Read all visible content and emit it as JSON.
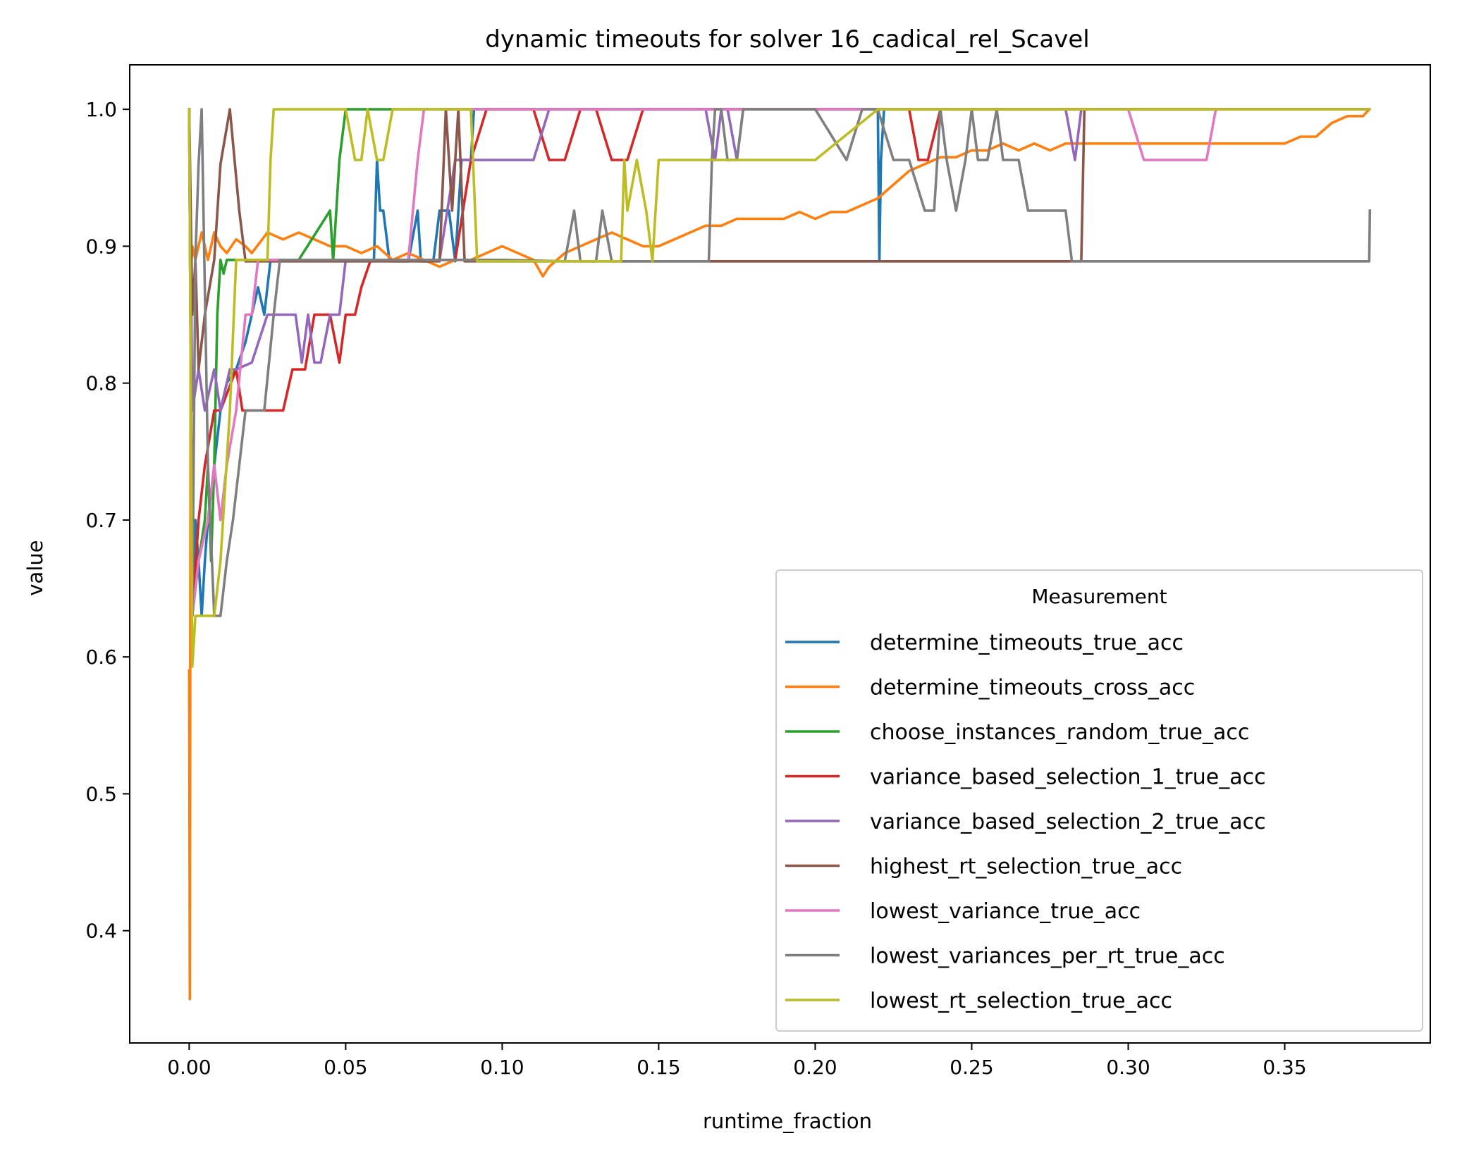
{
  "chart_data": {
    "type": "line",
    "title": "dynamic timeouts for solver 16_cadical_rel_Scavel",
    "xlabel": "runtime_fraction",
    "ylabel": "value",
    "xlim": [
      -0.019,
      0.3965
    ],
    "ylim": [
      0.318,
      1.0325
    ],
    "xticks": [
      0.0,
      0.05,
      0.1,
      0.15,
      0.2,
      0.25,
      0.3,
      0.35
    ],
    "xtick_labels": [
      "0.00",
      "0.05",
      "0.10",
      "0.15",
      "0.20",
      "0.25",
      "0.30",
      "0.35"
    ],
    "yticks": [
      0.4,
      0.5,
      0.6,
      0.7,
      0.8,
      0.9,
      1.0
    ],
    "ytick_labels": [
      "0.4",
      "0.5",
      "0.6",
      "0.7",
      "0.8",
      "0.9",
      "1.0"
    ],
    "grid": false,
    "legend": {
      "title": "Measurement",
      "placement": "lower-right"
    },
    "series": [
      {
        "name": "determine_timeouts_true_acc",
        "color": "#1f77b4",
        "x": [
          0,
          0.001,
          0.002,
          0.003,
          0.004,
          0.005,
          0.006,
          0.008,
          0.01,
          0.012,
          0.015,
          0.018,
          0.02,
          0.022,
          0.024,
          0.026,
          0.03,
          0.045,
          0.055,
          0.059,
          0.06,
          0.061,
          0.062,
          0.064,
          0.066,
          0.07,
          0.073,
          0.074,
          0.076,
          0.078,
          0.08,
          0.081,
          0.083,
          0.085,
          0.087,
          0.09,
          0.091,
          0.092,
          0.1,
          0.12,
          0.15,
          0.2,
          0.22,
          0.2205,
          0.221,
          0.222,
          0.224,
          0.226,
          0.3,
          0.377
        ],
        "values": [
          1.0,
          0.63,
          0.7,
          0.67,
          0.63,
          0.67,
          0.7,
          0.74,
          0.78,
          0.8,
          0.81,
          0.83,
          0.85,
          0.87,
          0.85,
          0.89,
          0.89,
          0.89,
          0.89,
          0.889,
          0.963,
          0.926,
          0.926,
          0.889,
          0.889,
          0.889,
          0.926,
          0.889,
          0.889,
          0.889,
          0.926,
          0.926,
          0.926,
          0.889,
          0.963,
          0.963,
          1.0,
          1.0,
          1.0,
          1.0,
          1.0,
          1.0,
          1.0,
          0.889,
          0.963,
          1.0,
          1.0,
          1.0,
          1.0,
          1.0
        ]
      },
      {
        "name": "determine_timeouts_cross_acc",
        "color": "#ff7f0e",
        "x": [
          0,
          0.0002,
          0.0005,
          0.001,
          0.002,
          0.004,
          0.006,
          0.008,
          0.01,
          0.012,
          0.015,
          0.018,
          0.02,
          0.025,
          0.03,
          0.035,
          0.04,
          0.045,
          0.05,
          0.055,
          0.06,
          0.065,
          0.07,
          0.075,
          0.08,
          0.085,
          0.09,
          0.095,
          0.1,
          0.105,
          0.11,
          0.113,
          0.115,
          0.12,
          0.125,
          0.13,
          0.135,
          0.14,
          0.145,
          0.15,
          0.155,
          0.16,
          0.165,
          0.17,
          0.175,
          0.18,
          0.185,
          0.19,
          0.195,
          0.2,
          0.205,
          0.21,
          0.215,
          0.22,
          0.225,
          0.23,
          0.235,
          0.24,
          0.245,
          0.25,
          0.255,
          0.26,
          0.265,
          0.27,
          0.275,
          0.28,
          0.285,
          0.29,
          0.295,
          0.3,
          0.305,
          0.31,
          0.315,
          0.32,
          0.325,
          0.33,
          0.34,
          0.35,
          0.355,
          0.36,
          0.365,
          0.37,
          0.375,
          0.377
        ],
        "values": [
          0.59,
          0.35,
          0.88,
          0.9,
          0.89,
          0.91,
          0.89,
          0.91,
          0.9,
          0.895,
          0.905,
          0.9,
          0.895,
          0.91,
          0.905,
          0.91,
          0.905,
          0.9,
          0.9,
          0.895,
          0.9,
          0.89,
          0.895,
          0.89,
          0.885,
          0.89,
          0.89,
          0.895,
          0.9,
          0.895,
          0.89,
          0.878,
          0.885,
          0.895,
          0.9,
          0.905,
          0.91,
          0.905,
          0.9,
          0.9,
          0.905,
          0.91,
          0.915,
          0.915,
          0.92,
          0.92,
          0.92,
          0.92,
          0.925,
          0.92,
          0.925,
          0.925,
          0.93,
          0.935,
          0.945,
          0.955,
          0.96,
          0.965,
          0.965,
          0.97,
          0.97,
          0.975,
          0.97,
          0.975,
          0.97,
          0.975,
          0.975,
          0.975,
          0.975,
          0.975,
          0.975,
          0.975,
          0.975,
          0.975,
          0.975,
          0.975,
          0.975,
          0.975,
          0.98,
          0.98,
          0.99,
          0.995,
          0.995,
          1.0
        ]
      },
      {
        "name": "choose_instances_random_true_acc",
        "color": "#2ca02c",
        "x": [
          0,
          0.001,
          0.003,
          0.005,
          0.006,
          0.007,
          0.008,
          0.009,
          0.01,
          0.011,
          0.012,
          0.014,
          0.017,
          0.02,
          0.025,
          0.035,
          0.045,
          0.046,
          0.047,
          0.048,
          0.05,
          0.052,
          0.055,
          0.06,
          0.065,
          0.07,
          0.08,
          0.1,
          0.15,
          0.2,
          0.3,
          0.377
        ],
        "values": [
          1.0,
          0.63,
          0.67,
          0.7,
          0.74,
          0.67,
          0.74,
          0.85,
          0.89,
          0.88,
          0.89,
          0.89,
          0.89,
          0.89,
          0.89,
          0.89,
          0.926,
          0.889,
          0.926,
          0.963,
          1.0,
          1.0,
          1.0,
          1.0,
          1.0,
          1.0,
          1.0,
          1.0,
          1.0,
          1.0,
          1.0,
          1.0
        ]
      },
      {
        "name": "variance_based_selection_1_true_acc",
        "color": "#d62728",
        "x": [
          0,
          0.001,
          0.003,
          0.005,
          0.008,
          0.01,
          0.015,
          0.017,
          0.02,
          0.025,
          0.03,
          0.033,
          0.037,
          0.04,
          0.045,
          0.048,
          0.05,
          0.053,
          0.055,
          0.058,
          0.06,
          0.07,
          0.08,
          0.085,
          0.09,
          0.095,
          0.1,
          0.11,
          0.115,
          0.12,
          0.125,
          0.13,
          0.135,
          0.14,
          0.145,
          0.15,
          0.16,
          0.17,
          0.18,
          0.19,
          0.2,
          0.21,
          0.22,
          0.23,
          0.233,
          0.236,
          0.24,
          0.25,
          0.28,
          0.3,
          0.377
        ],
        "values": [
          1.0,
          0.63,
          0.7,
          0.74,
          0.78,
          0.78,
          0.81,
          0.78,
          0.78,
          0.78,
          0.78,
          0.81,
          0.81,
          0.85,
          0.85,
          0.815,
          0.85,
          0.85,
          0.87,
          0.89,
          0.89,
          0.89,
          0.89,
          0.89,
          0.963,
          1.0,
          1.0,
          1.0,
          0.963,
          0.963,
          1.0,
          1.0,
          0.963,
          0.963,
          1.0,
          1.0,
          1.0,
          1.0,
          1.0,
          1.0,
          1.0,
          1.0,
          1.0,
          1.0,
          0.963,
          0.963,
          1.0,
          1.0,
          1.0,
          1.0,
          1.0
        ]
      },
      {
        "name": "variance_based_selection_2_true_acc",
        "color": "#9467bd",
        "x": [
          0,
          0.001,
          0.003,
          0.005,
          0.008,
          0.01,
          0.013,
          0.015,
          0.02,
          0.025,
          0.03,
          0.034,
          0.036,
          0.038,
          0.04,
          0.042,
          0.045,
          0.048,
          0.05,
          0.055,
          0.06,
          0.07,
          0.08,
          0.085,
          0.09,
          0.1,
          0.11,
          0.115,
          0.12,
          0.13,
          0.15,
          0.165,
          0.168,
          0.17,
          0.172,
          0.175,
          0.177,
          0.18,
          0.2,
          0.22,
          0.25,
          0.28,
          0.283,
          0.285,
          0.29,
          0.3,
          0.377
        ],
        "values": [
          1.0,
          0.78,
          0.81,
          0.78,
          0.81,
          0.78,
          0.81,
          0.81,
          0.815,
          0.85,
          0.85,
          0.85,
          0.815,
          0.85,
          0.815,
          0.815,
          0.85,
          0.85,
          0.89,
          0.89,
          0.89,
          0.89,
          0.89,
          0.963,
          0.963,
          0.963,
          0.963,
          1.0,
          1.0,
          1.0,
          1.0,
          1.0,
          0.963,
          1.0,
          1.0,
          0.963,
          1.0,
          1.0,
          1.0,
          1.0,
          1.0,
          1.0,
          0.963,
          1.0,
          1.0,
          1.0,
          1.0
        ]
      },
      {
        "name": "highest_rt_selection_true_acc",
        "color": "#8c564b",
        "x": [
          0,
          0.001,
          0.002,
          0.003,
          0.005,
          0.008,
          0.01,
          0.013,
          0.016,
          0.018,
          0.025,
          0.04,
          0.06,
          0.08,
          0.082,
          0.084,
          0.086,
          0.088,
          0.1,
          0.15,
          0.17,
          0.2,
          0.25,
          0.285,
          0.286,
          0.377
        ],
        "values": [
          1.0,
          0.85,
          0.89,
          0.81,
          0.85,
          0.89,
          0.96,
          1.0,
          0.926,
          0.889,
          0.889,
          0.889,
          0.889,
          0.889,
          1.0,
          0.926,
          1.0,
          0.889,
          0.889,
          0.889,
          0.889,
          0.889,
          0.889,
          0.889,
          1.0,
          1.0
        ]
      },
      {
        "name": "lowest_variance_true_acc",
        "color": "#e377c2",
        "x": [
          0,
          0.001,
          0.003,
          0.006,
          0.008,
          0.01,
          0.012,
          0.015,
          0.018,
          0.02,
          0.022,
          0.025,
          0.03,
          0.05,
          0.07,
          0.073,
          0.075,
          0.076,
          0.078,
          0.08,
          0.09,
          0.15,
          0.2,
          0.25,
          0.3,
          0.305,
          0.31,
          0.325,
          0.328,
          0.33,
          0.377
        ],
        "values": [
          1.0,
          0.63,
          0.67,
          0.7,
          0.74,
          0.7,
          0.74,
          0.78,
          0.85,
          0.85,
          0.89,
          0.89,
          0.89,
          0.89,
          0.89,
          0.963,
          1.0,
          1.0,
          1.0,
          1.0,
          1.0,
          1.0,
          1.0,
          1.0,
          1.0,
          0.963,
          0.963,
          0.963,
          1.0,
          1.0,
          1.0
        ]
      },
      {
        "name": "lowest_variances_per_rt_true_acc",
        "color": "#7f7f7f",
        "x": [
          0,
          0.001,
          0.002,
          0.003,
          0.004,
          0.006,
          0.008,
          0.01,
          0.012,
          0.014,
          0.016,
          0.018,
          0.02,
          0.024,
          0.027,
          0.029,
          0.03,
          0.05,
          0.1,
          0.12,
          0.123,
          0.125,
          0.13,
          0.132,
          0.135,
          0.15,
          0.166,
          0.167,
          0.168,
          0.17,
          0.172,
          0.175,
          0.177,
          0.18,
          0.182,
          0.185,
          0.2,
          0.21,
          0.215,
          0.22,
          0.225,
          0.23,
          0.235,
          0.238,
          0.24,
          0.242,
          0.245,
          0.248,
          0.25,
          0.252,
          0.255,
          0.258,
          0.26,
          0.262,
          0.265,
          0.268,
          0.275,
          0.278,
          0.28,
          0.282,
          0.285,
          0.286,
          0.3,
          0.377,
          0.3772
        ],
        "values": [
          1.0,
          0.63,
          0.89,
          0.96,
          1.0,
          0.74,
          0.63,
          0.63,
          0.67,
          0.7,
          0.74,
          0.78,
          0.78,
          0.78,
          0.85,
          0.89,
          0.89,
          0.89,
          0.89,
          0.889,
          0.926,
          0.889,
          0.889,
          0.926,
          0.889,
          0.889,
          0.889,
          0.963,
          1.0,
          1.0,
          0.963,
          0.963,
          1.0,
          1.0,
          1.0,
          1.0,
          1.0,
          0.963,
          1.0,
          1.0,
          0.963,
          0.963,
          0.926,
          0.926,
          1.0,
          0.963,
          0.926,
          0.963,
          1.0,
          0.963,
          0.963,
          1.0,
          0.963,
          0.963,
          0.963,
          0.926,
          0.926,
          0.926,
          0.926,
          0.889,
          0.889,
          0.889,
          0.889,
          0.889,
          0.926
        ]
      },
      {
        "name": "lowest_rt_selection_true_acc",
        "color": "#bcbd22",
        "x": [
          0,
          0.001,
          0.002,
          0.003,
          0.005,
          0.008,
          0.01,
          0.013,
          0.015,
          0.02,
          0.025,
          0.026,
          0.027,
          0.03,
          0.05,
          0.053,
          0.055,
          0.057,
          0.06,
          0.062,
          0.065,
          0.07,
          0.09,
          0.092,
          0.1,
          0.12,
          0.135,
          0.138,
          0.139,
          0.14,
          0.143,
          0.146,
          0.148,
          0.15,
          0.155,
          0.16,
          0.2,
          0.22,
          0.25,
          0.3,
          0.377
        ],
        "values": [
          1.0,
          0.593,
          0.63,
          0.63,
          0.63,
          0.63,
          0.67,
          0.78,
          0.89,
          0.89,
          0.89,
          0.963,
          1.0,
          1.0,
          1.0,
          0.963,
          0.963,
          1.0,
          0.963,
          0.963,
          1.0,
          1.0,
          1.0,
          0.889,
          0.889,
          0.889,
          0.889,
          0.889,
          0.963,
          0.926,
          0.963,
          0.926,
          0.889,
          0.963,
          0.963,
          0.963,
          0.963,
          1.0,
          1.0,
          1.0,
          1.0
        ]
      }
    ]
  }
}
